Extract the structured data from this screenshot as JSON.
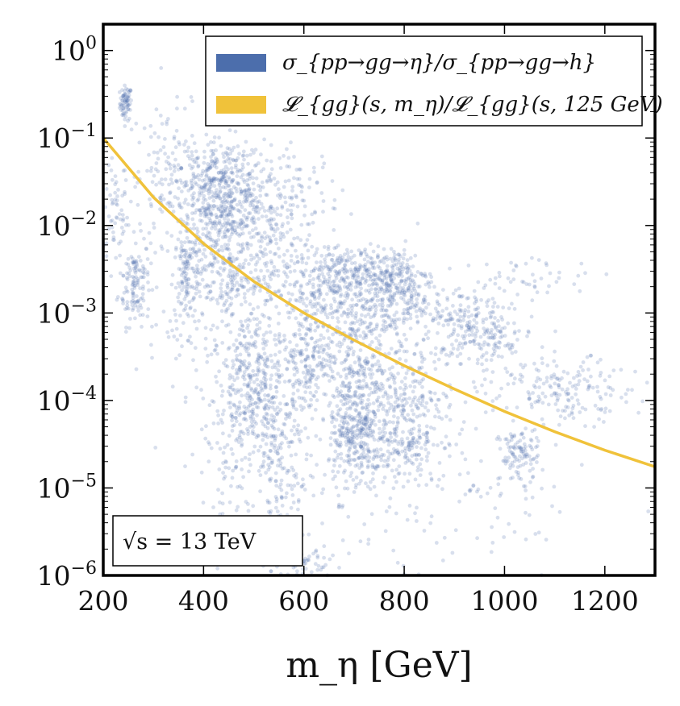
{
  "chart_data": {
    "type": "scatter",
    "title": "",
    "xlabel": "m_η [GeV]",
    "ylabel": "",
    "x_scale": "linear",
    "y_scale": "log",
    "xlim": [
      200,
      1300
    ],
    "ylim": [
      1e-06,
      2
    ],
    "x_ticks": [
      200,
      400,
      600,
      800,
      1000,
      1200
    ],
    "x_tick_labels": [
      "200",
      "400",
      "600",
      "800",
      "1000",
      "1200"
    ],
    "y_ticks": [
      {
        "value": 1.0,
        "base": "10",
        "exp": "0"
      },
      {
        "value": 0.1,
        "base": "10",
        "exp": "−1"
      },
      {
        "value": 0.01,
        "base": "10",
        "exp": "−2"
      },
      {
        "value": 0.001,
        "base": "10",
        "exp": "−3"
      },
      {
        "value": 0.0001,
        "base": "10",
        "exp": "−4"
      },
      {
        "value": 1e-05,
        "base": "10",
        "exp": "−5"
      },
      {
        "value": 1e-06,
        "base": "10",
        "exp": "−6"
      }
    ],
    "colors": {
      "scatter": "#4c6eac",
      "line": "#f0c23a"
    },
    "legend": {
      "placement": "top-right",
      "entries": [
        {
          "label": "σ_{pp→gg→η}/σ_{pp→gg→h}",
          "kind": "patch",
          "color": "#4c6eac"
        },
        {
          "label": "𝓛_{gg}(s, m_η)/𝓛_{gg}(s, 125 GeV)",
          "kind": "patch",
          "color": "#f0c23a"
        }
      ]
    },
    "annotation": {
      "text": "√s = 13 TeV",
      "placement": "bottom-left"
    },
    "series": [
      {
        "name": "luminosity ratio",
        "kind": "line",
        "x": [
          200,
          300,
          400,
          500,
          600,
          700,
          800,
          900,
          1000,
          1100,
          1200,
          1300
        ],
        "y": [
          0.1,
          0.021,
          0.0062,
          0.0023,
          0.001,
          0.00049,
          0.00025,
          0.000135,
          7.5e-05,
          4.4e-05,
          2.7e-05,
          1.75e-05
        ]
      },
      {
        "name": "cross-section ratio",
        "kind": "scatter-clusters",
        "clusters": [
          {
            "x": 245,
            "y": 0.25,
            "sx": 6,
            "sy": 0.1,
            "n": 70
          },
          {
            "x": 225,
            "y": 0.014,
            "sx": 12,
            "sy": 0.25,
            "n": 50
          },
          {
            "x": 262,
            "y": 0.0023,
            "sx": 16,
            "sy": 0.25,
            "n": 130
          },
          {
            "x": 335,
            "y": 0.045,
            "sx": 45,
            "sy": 0.35,
            "n": 120
          },
          {
            "x": 440,
            "y": 0.03,
            "sx": 40,
            "sy": 0.25,
            "n": 240
          },
          {
            "x": 430,
            "y": 0.016,
            "sx": 60,
            "sy": 0.3,
            "n": 300
          },
          {
            "x": 520,
            "y": 0.011,
            "sx": 60,
            "sy": 0.3,
            "n": 150
          },
          {
            "x": 590,
            "y": 0.025,
            "sx": 40,
            "sy": 0.25,
            "n": 60
          },
          {
            "x": 370,
            "y": 0.0025,
            "sx": 14,
            "sy": 0.3,
            "n": 130
          },
          {
            "x": 415,
            "y": 0.0045,
            "sx": 20,
            "sy": 0.3,
            "n": 60
          },
          {
            "x": 455,
            "y": 0.0025,
            "sx": 15,
            "sy": 0.25,
            "n": 70
          },
          {
            "x": 520,
            "y": 0.0035,
            "sx": 40,
            "sy": 0.2,
            "n": 70
          },
          {
            "x": 680,
            "y": 0.003,
            "sx": 60,
            "sy": 0.12,
            "n": 200
          },
          {
            "x": 790,
            "y": 0.0025,
            "sx": 30,
            "sy": 0.2,
            "n": 140
          },
          {
            "x": 700,
            "y": 0.0016,
            "sx": 80,
            "sy": 0.3,
            "n": 250
          },
          {
            "x": 760,
            "y": 0.0011,
            "sx": 60,
            "sy": 0.2,
            "n": 150
          },
          {
            "x": 620,
            "y": 0.0008,
            "sx": 50,
            "sy": 0.35,
            "n": 120
          },
          {
            "x": 610,
            "y": 0.0003,
            "sx": 20,
            "sy": 0.25,
            "n": 110
          },
          {
            "x": 710,
            "y": 0.00012,
            "sx": 30,
            "sy": 0.55,
            "n": 380
          },
          {
            "x": 700,
            "y": 3.5e-05,
            "sx": 25,
            "sy": 0.25,
            "n": 140
          },
          {
            "x": 800,
            "y": 4e-05,
            "sx": 40,
            "sy": 0.25,
            "n": 180
          },
          {
            "x": 810,
            "y": 0.00015,
            "sx": 30,
            "sy": 0.3,
            "n": 80
          },
          {
            "x": 930,
            "y": 0.0009,
            "sx": 40,
            "sy": 0.18,
            "n": 120
          },
          {
            "x": 960,
            "y": 0.00045,
            "sx": 45,
            "sy": 0.18,
            "n": 110
          },
          {
            "x": 1030,
            "y": 2.4e-05,
            "sx": 20,
            "sy": 0.15,
            "n": 100
          },
          {
            "x": 1130,
            "y": 0.00013,
            "sx": 60,
            "sy": 0.18,
            "n": 160
          },
          {
            "x": 1060,
            "y": 0.0025,
            "sx": 60,
            "sy": 0.12,
            "n": 45
          },
          {
            "x": 520,
            "y": 8e-05,
            "sx": 50,
            "sy": 0.4,
            "n": 280
          },
          {
            "x": 490,
            "y": 0.00015,
            "sx": 30,
            "sy": 0.3,
            "n": 110
          },
          {
            "x": 545,
            "y": 1.5e-05,
            "sx": 25,
            "sy": 0.6,
            "n": 120
          },
          {
            "x": 450,
            "y": 1e-05,
            "sx": 30,
            "sy": 0.5,
            "n": 60
          },
          {
            "x": 620,
            "y": 1.2e-06,
            "sx": 30,
            "sy": 0.15,
            "n": 60
          },
          {
            "x": 470,
            "y": 0.0008,
            "sx": 80,
            "sy": 0.5,
            "n": 220
          },
          {
            "x": 850,
            "y": 8e-05,
            "sx": 110,
            "sy": 0.5,
            "n": 160
          },
          {
            "x": 720,
            "y": 1e-05,
            "sx": 140,
            "sy": 0.6,
            "n": 120
          },
          {
            "x": 1000,
            "y": 5e-06,
            "sx": 80,
            "sy": 0.4,
            "n": 40
          }
        ]
      }
    ]
  }
}
